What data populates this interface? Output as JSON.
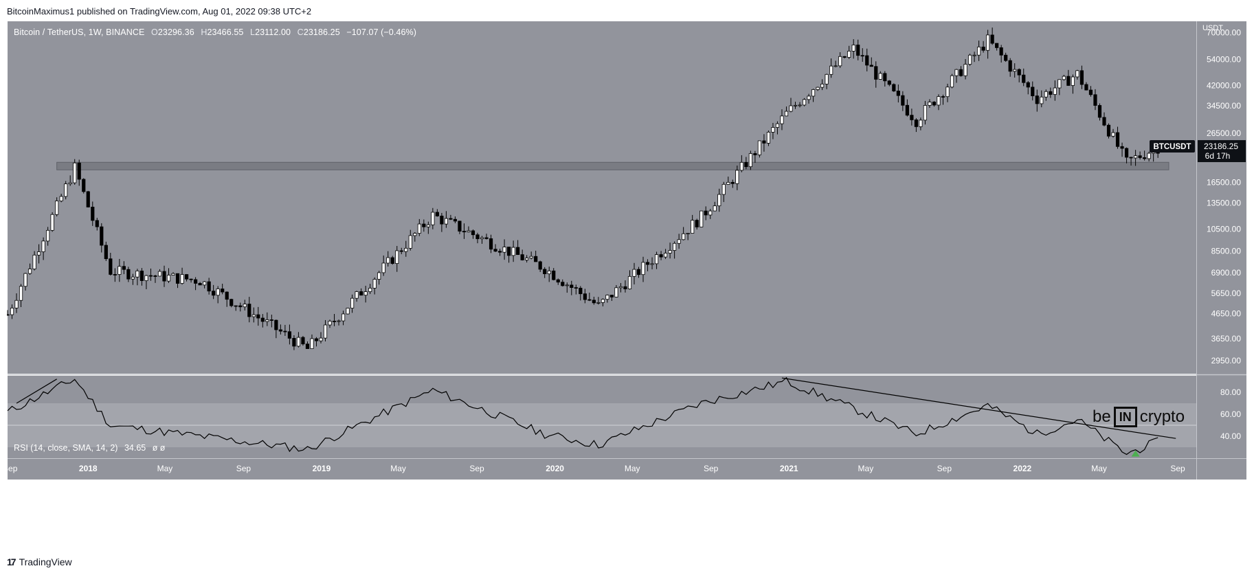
{
  "header": {
    "publish_line": "BitcoinMaximus1 published on TradingView.com, Aug 01, 2022 09:38 UTC+2"
  },
  "legend": {
    "symbol": "Bitcoin / TetherUS, 1W, BINANCE",
    "o_label": "O",
    "o_value": "23296.36",
    "h_label": "H",
    "h_value": "23466.55",
    "l_label": "L",
    "l_value": "23112.00",
    "c_label": "C",
    "c_value": "23186.25",
    "change": "−107.07 (−0.46%)"
  },
  "rsi_legend": {
    "text": "RSI (14, close, SMA, 14, 2)",
    "value": "34.65",
    "extra": "ø ø"
  },
  "price_axis": {
    "unit": "USDT",
    "ticks": [
      "70000.00",
      "54000.00",
      "42000.00",
      "34500.00",
      "26500.00",
      "16500.00",
      "13500.00",
      "10500.00",
      "8500.00",
      "6900.00",
      "5650.00",
      "4650.00",
      "3650.00",
      "2950.00"
    ],
    "symbol_tag": "BTCUSDT",
    "last_price": "23186.25",
    "countdown": "6d 17h"
  },
  "rsi_axis": {
    "ticks": [
      "80.00",
      "60.00",
      "40.00"
    ]
  },
  "time_axis": {
    "labels": [
      "Sep",
      "2018",
      "May",
      "Sep",
      "2019",
      "May",
      "Sep",
      "2020",
      "May",
      "Sep",
      "2021",
      "May",
      "Sep",
      "2022",
      "May",
      "Sep"
    ]
  },
  "watermark": {
    "pre": "be",
    "mid": "IN",
    "post": "crypto"
  },
  "footer": {
    "logo_mark": "17",
    "brand": "TradingView"
  },
  "colors": {
    "pane_bg": "#92949c",
    "up": "#ffffff",
    "down": "#000000",
    "support_zone": "#7a7c83",
    "rsi_band": "#a3a5ac",
    "rsi_line": "#000000",
    "signal": "#4caf50"
  },
  "chart_data": [
    {
      "type": "candlestick",
      "title": "Bitcoin / TetherUS, 1W, BINANCE",
      "y_scale": "log",
      "ylim": [
        2600,
        78000
      ],
      "x_range": [
        "2017-08-28",
        "2022-09-30"
      ],
      "key_points": [
        {
          "date": "2017-08-28",
          "close": 4600
        },
        {
          "date": "2017-12-11",
          "close": 19000
        },
        {
          "date": "2018-02-05",
          "close": 7000
        },
        {
          "date": "2018-06-25",
          "close": 6400
        },
        {
          "date": "2018-12-10",
          "close": 3300
        },
        {
          "date": "2019-06-24",
          "close": 12000
        },
        {
          "date": "2019-12-16",
          "close": 7200
        },
        {
          "date": "2020-03-09",
          "close": 5000
        },
        {
          "date": "2020-08-17",
          "close": 11800
        },
        {
          "date": "2020-12-28",
          "close": 32000
        },
        {
          "date": "2021-04-12",
          "close": 60000
        },
        {
          "date": "2021-07-19",
          "close": 30000
        },
        {
          "date": "2021-11-08",
          "close": 65000
        },
        {
          "date": "2022-01-24",
          "close": 37000
        },
        {
          "date": "2022-03-28",
          "close": 47000
        },
        {
          "date": "2022-06-13",
          "close": 20000
        },
        {
          "date": "2022-08-01",
          "close": 23186
        }
      ],
      "horizontal_zone": [
        18600,
        20000
      ]
    },
    {
      "type": "line",
      "title": "RSI (14, close, SMA, 14, 2)",
      "ylim": [
        20,
        95
      ],
      "bands": [
        30,
        50,
        70
      ],
      "key_points": [
        {
          "date": "2017-08-28",
          "value": 62
        },
        {
          "date": "2017-12-11",
          "value": 92
        },
        {
          "date": "2018-02-05",
          "value": 50
        },
        {
          "date": "2018-12-10",
          "value": 28
        },
        {
          "date": "2019-06-24",
          "value": 82
        },
        {
          "date": "2019-12-16",
          "value": 42
        },
        {
          "date": "2020-03-09",
          "value": 32
        },
        {
          "date": "2020-08-17",
          "value": 70
        },
        {
          "date": "2020-12-28",
          "value": 90
        },
        {
          "date": "2021-07-19",
          "value": 42
        },
        {
          "date": "2021-11-08",
          "value": 68
        },
        {
          "date": "2022-01-24",
          "value": 42
        },
        {
          "date": "2022-03-28",
          "value": 55
        },
        {
          "date": "2022-06-13",
          "value": 24
        },
        {
          "date": "2022-08-01",
          "value": 35
        }
      ],
      "trendline": [
        {
          "date": "2020-12-21",
          "value": 93
        },
        {
          "date": "2022-08-29",
          "value": 38
        }
      ],
      "signal_marker": {
        "date": "2022-06-27",
        "value": 24
      }
    }
  ]
}
